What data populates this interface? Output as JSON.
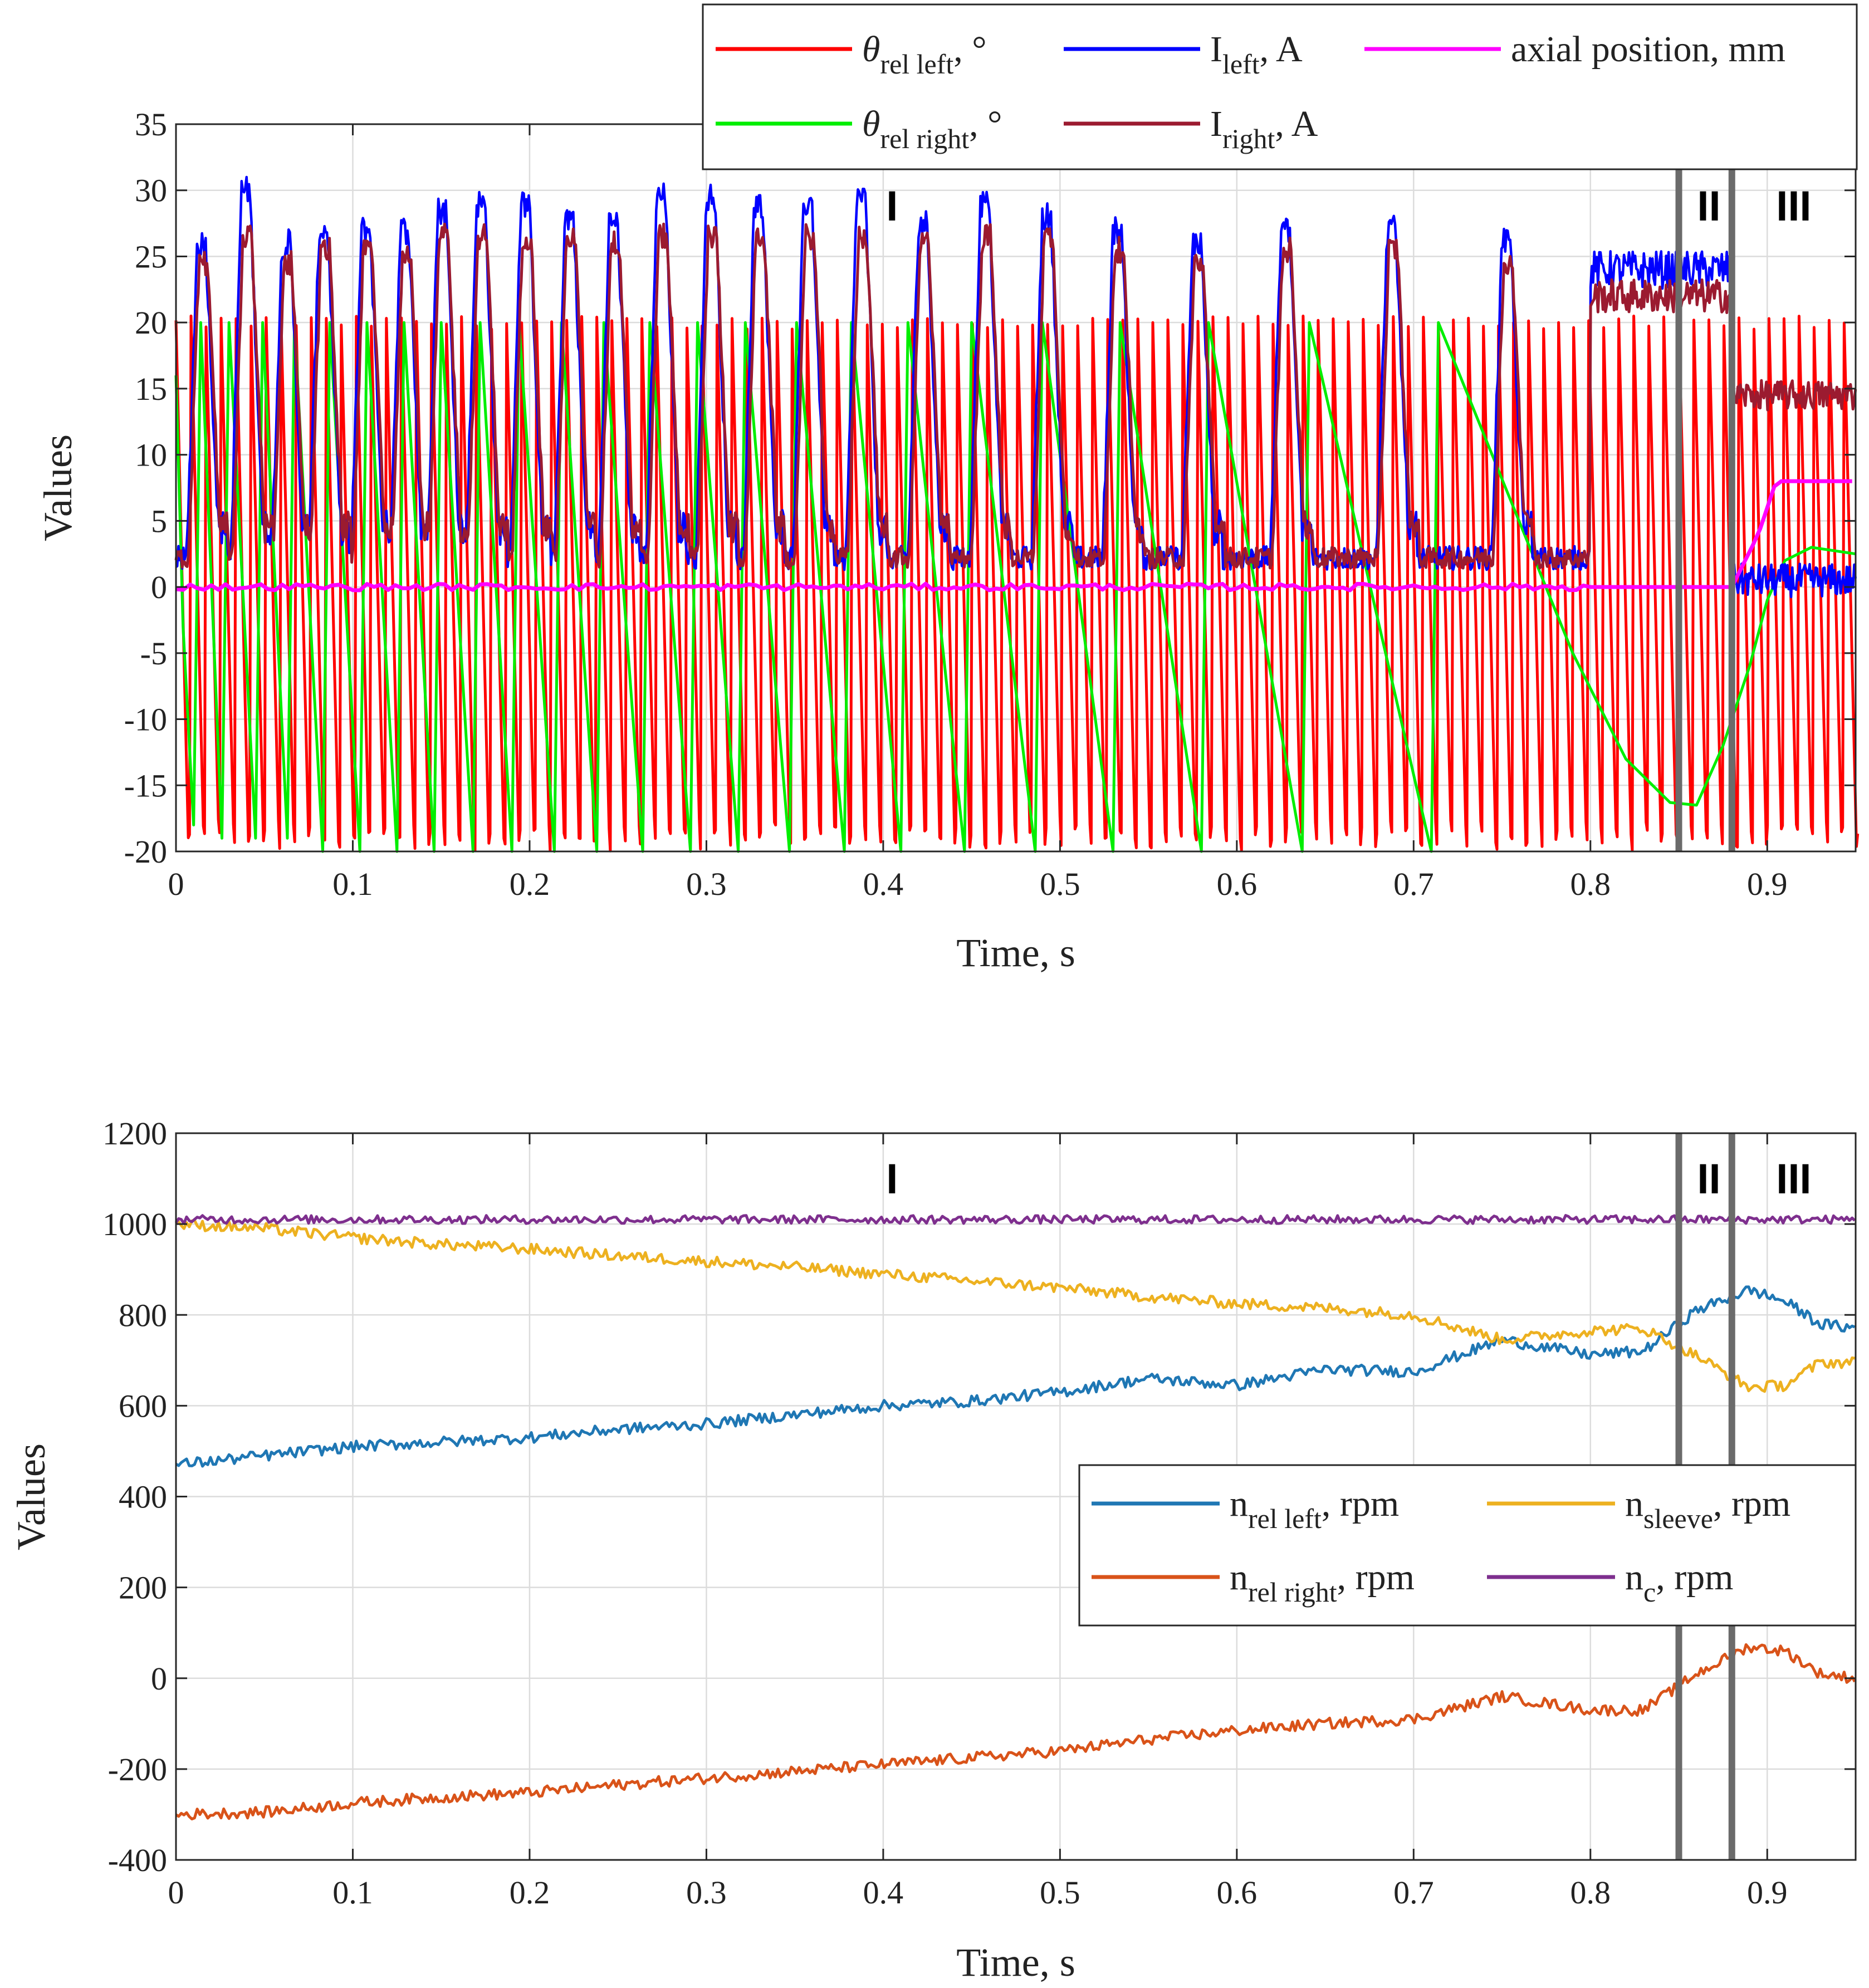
{
  "chart_data": [
    {
      "type": "line",
      "xlabel": "Time, s",
      "ylabel": "Values",
      "xlim": [
        0,
        0.95
      ],
      "ylim": [
        -20,
        35
      ],
      "xticks": [
        "0",
        "0.1",
        "0.2",
        "0.3",
        "0.4",
        "0.5",
        "0.6",
        "0.7",
        "0.8",
        "0.9"
      ],
      "yticks": [
        "35",
        "30",
        "25",
        "20",
        "15",
        "10",
        "5",
        "0",
        "-5",
        "-10",
        "-15",
        "-20"
      ],
      "grid": true,
      "legend_position": "top-right (above axes)",
      "region_labels": [
        {
          "text": "I",
          "x": 0.405
        },
        {
          "text": "II",
          "x": 0.867
        },
        {
          "text": "III",
          "x": 0.915
        }
      ],
      "region_boundaries": [
        0.85,
        0.88
      ],
      "series": [
        {
          "key": "theta_left",
          "name": "θrel left, °",
          "color": "#ff0000",
          "description": "sawtooth between -20 and 20 with ~8.5 ms period"
        },
        {
          "key": "theta_right",
          "name": "θrel right, °",
          "color": "#00ee00",
          "knots": [
            [
              0,
              16
            ],
            [
              0.004,
              -3
            ],
            [
              0.01,
              -18
            ],
            [
              0.014,
              20
            ],
            [
              0.026,
              -19
            ],
            [
              0.03,
              20
            ],
            [
              0.045,
              -19
            ],
            [
              0.049,
              20
            ],
            [
              0.063,
              -19
            ],
            [
              0.067,
              20
            ],
            [
              0.083,
              -20
            ],
            [
              0.087,
              20
            ],
            [
              0.104,
              -20
            ],
            [
              0.108,
              20
            ],
            [
              0.125,
              -20
            ],
            [
              0.129,
              20
            ],
            [
              0.146,
              -20
            ],
            [
              0.15,
              20
            ],
            [
              0.168,
              -20
            ],
            [
              0.172,
              20
            ],
            [
              0.19,
              -20
            ],
            [
              0.194,
              20
            ],
            [
              0.214,
              -20
            ],
            [
              0.218,
              20
            ],
            [
              0.238,
              -20
            ],
            [
              0.242,
              20
            ],
            [
              0.264,
              -20
            ],
            [
              0.268,
              20
            ],
            [
              0.291,
              -20
            ],
            [
              0.295,
              20
            ],
            [
              0.318,
              -20
            ],
            [
              0.322,
              20
            ],
            [
              0.347,
              -20
            ],
            [
              0.351,
              20
            ],
            [
              0.378,
              -20
            ],
            [
              0.382,
              20
            ],
            [
              0.41,
              -20
            ],
            [
              0.414,
              20
            ],
            [
              0.446,
              -20
            ],
            [
              0.45,
              20
            ],
            [
              0.486,
              -20
            ],
            [
              0.49,
              20
            ],
            [
              0.53,
              -20
            ],
            [
              0.534,
              20
            ],
            [
              0.58,
              -20
            ],
            [
              0.584,
              20
            ],
            [
              0.637,
              -20
            ],
            [
              0.641,
              20
            ],
            [
              0.71,
              -20
            ],
            [
              0.714,
              20
            ],
            [
              0.79,
              -5
            ],
            [
              0.82,
              -13
            ],
            [
              0.845,
              -16.3
            ],
            [
              0.86,
              -16.5
            ],
            [
              0.875,
              -12
            ],
            [
              0.89,
              -6
            ],
            [
              0.9,
              -1
            ],
            [
              0.91,
              2
            ],
            [
              0.925,
              3
            ],
            [
              0.95,
              2.5
            ]
          ]
        },
        {
          "key": "i_left",
          "name": "Ileft, A",
          "color": "#0000ff",
          "peaks": [
            0.012,
            0.037,
            0.06,
            0.081,
            0.105,
            0.127,
            0.148,
            0.17,
            0.195,
            0.22,
            0.245,
            0.272,
            0.3,
            0.327,
            0.355,
            0.385,
            0.42,
            0.455,
            0.49,
            0.53,
            0.575,
            0.625,
            0.685,
            0.75
          ],
          "peak_values": [
            26,
            30,
            26,
            27,
            27,
            27,
            28.5,
            29,
            29,
            28,
            27.5,
            29.5,
            29.5,
            29,
            29,
            29.5,
            27.5,
            29,
            28,
            27,
            26,
            27,
            27,
            26
          ],
          "late_segment": {
            "range": [
              0.8,
              0.88
            ],
            "level": 24
          }
        },
        {
          "key": "i_right",
          "name": "Iright, A",
          "color": "#9b1b30",
          "late_segment": {
            "range": [
              0.8,
              0.88
            ],
            "level": 22
          },
          "final_level": 14.5
        },
        {
          "key": "axial",
          "name": "axial position, mm",
          "color": "#ff00ff",
          "knots": [
            [
              0,
              0
            ],
            [
              0.88,
              0
            ],
            [
              0.895,
              4
            ],
            [
              0.905,
              8
            ],
            [
              0.95,
              8
            ]
          ]
        }
      ],
      "legend": [
        {
          "base": "θ",
          "sub": "rel left",
          "rest": ", °",
          "color": "#ff0000"
        },
        {
          "base": "I",
          "sub": "left",
          "rest": ", A",
          "color": "#0000ff"
        },
        {
          "base": "axial position, mm",
          "sub": "",
          "rest": "",
          "color": "#ff00ff"
        },
        {
          "base": "θ",
          "sub": "rel right",
          "rest": ", °",
          "color": "#00ee00"
        },
        {
          "base": "I",
          "sub": "right",
          "rest": ", A",
          "color": "#9b1b30"
        }
      ]
    },
    {
      "type": "line",
      "xlabel": "Time, s",
      "ylabel": "Values",
      "xlim": [
        0,
        0.95
      ],
      "ylim": [
        -400,
        1200
      ],
      "xticks": [
        "0",
        "0.1",
        "0.2",
        "0.3",
        "0.4",
        "0.5",
        "0.6",
        "0.7",
        "0.8",
        "0.9"
      ],
      "yticks": [
        "1200",
        "1000",
        "800",
        "600",
        "400",
        "200",
        "0",
        "-200",
        "-400"
      ],
      "grid": true,
      "legend_position": "right-middle",
      "region_labels": [
        {
          "text": "I",
          "x": 0.405
        },
        {
          "text": "II",
          "x": 0.867
        },
        {
          "text": "III",
          "x": 0.915
        }
      ],
      "region_boundaries": [
        0.85,
        0.88
      ],
      "series": [
        {
          "key": "n_rel_left",
          "name": "nrel left, rpm",
          "color": "#1f77b4",
          "knots": [
            [
              0,
              470
            ],
            [
              0.05,
              490
            ],
            [
              0.1,
              510
            ],
            [
              0.15,
              520
            ],
            [
              0.2,
              530
            ],
            [
              0.25,
              548
            ],
            [
              0.3,
              560
            ],
            [
              0.35,
              580
            ],
            [
              0.4,
              600
            ],
            [
              0.45,
              610
            ],
            [
              0.5,
              630
            ],
            [
              0.55,
              660
            ],
            [
              0.6,
              645
            ],
            [
              0.65,
              680
            ],
            [
              0.7,
              675
            ],
            [
              0.75,
              745
            ],
            [
              0.8,
              712
            ],
            [
              0.83,
              720
            ],
            [
              0.86,
              810
            ],
            [
              0.89,
              855
            ],
            [
              0.91,
              830
            ],
            [
              0.93,
              780
            ],
            [
              0.95,
              770
            ]
          ]
        },
        {
          "key": "n_rel_right",
          "name": "nrel right, rpm",
          "color": "#d95319",
          "knots": [
            [
              0,
              -300
            ],
            [
              0.05,
              -295
            ],
            [
              0.1,
              -275
            ],
            [
              0.15,
              -262
            ],
            [
              0.2,
              -252
            ],
            [
              0.25,
              -235
            ],
            [
              0.3,
              -220
            ],
            [
              0.35,
              -205
            ],
            [
              0.4,
              -190
            ],
            [
              0.45,
              -175
            ],
            [
              0.5,
              -160
            ],
            [
              0.55,
              -135
            ],
            [
              0.6,
              -115
            ],
            [
              0.65,
              -100
            ],
            [
              0.7,
              -90
            ],
            [
              0.75,
              -40
            ],
            [
              0.8,
              -70
            ],
            [
              0.83,
              -70
            ],
            [
              0.86,
              10
            ],
            [
              0.89,
              70
            ],
            [
              0.91,
              60
            ],
            [
              0.93,
              10
            ],
            [
              0.95,
              0
            ]
          ]
        },
        {
          "key": "n_sleeve",
          "name": "nsleeve, rpm",
          "color": "#edb120",
          "knots": [
            [
              0,
              1000
            ],
            [
              0.05,
              990
            ],
            [
              0.1,
              970
            ],
            [
              0.15,
              955
            ],
            [
              0.2,
              945
            ],
            [
              0.25,
              930
            ],
            [
              0.3,
              918
            ],
            [
              0.35,
              905
            ],
            [
              0.4,
              890
            ],
            [
              0.45,
              875
            ],
            [
              0.5,
              860
            ],
            [
              0.55,
              840
            ],
            [
              0.6,
              825
            ],
            [
              0.65,
              815
            ],
            [
              0.7,
              800
            ],
            [
              0.75,
              745
            ],
            [
              0.8,
              765
            ],
            [
              0.83,
              770
            ],
            [
              0.86,
              710
            ],
            [
              0.89,
              640
            ],
            [
              0.91,
              645
            ],
            [
              0.93,
              695
            ],
            [
              0.95,
              695
            ]
          ]
        },
        {
          "key": "n_c",
          "name": "nc, rpm",
          "color": "#7e2f8e",
          "knots": [
            [
              0,
              1010
            ],
            [
              0.95,
              1010
            ]
          ]
        }
      ],
      "legend": [
        {
          "base": "n",
          "sub": "rel left",
          "rest": ", rpm",
          "color": "#1f77b4"
        },
        {
          "base": "n",
          "sub": "sleeve",
          "rest": ", rpm",
          "color": "#edb120"
        },
        {
          "base": "n",
          "sub": "rel right",
          "rest": ", rpm",
          "color": "#d95319"
        },
        {
          "base": "n",
          "sub": "c",
          "rest": ", rpm",
          "color": "#7e2f8e"
        }
      ]
    }
  ]
}
